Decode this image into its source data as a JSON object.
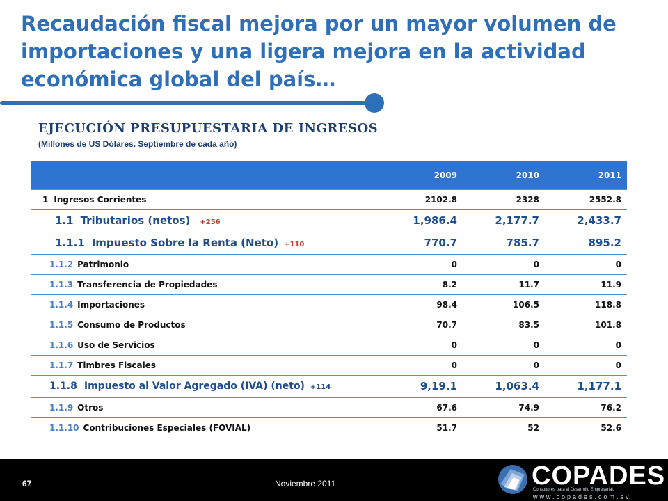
{
  "title": "Recaudación fiscal mejora por un mayor volumen de importaciones y una ligera mejora en la actividad económica global del país…",
  "subtitle": "EJECUCIÓN PRESUPUESTARIA DE INGRESOS",
  "note": "(Millones de US Dólares. Septiembre de cada año)",
  "table": {
    "headers": [
      "2009",
      "2010",
      "2011"
    ],
    "rows": [
      {
        "code": "1",
        "label": "Ingresos Corrientes",
        "delta": "",
        "values": [
          "2102.8",
          "2328",
          "2552.8"
        ]
      },
      {
        "code": "1.1",
        "label": "Tributarios (netos)",
        "delta": "+256",
        "values": [
          "1,986.4",
          "2,177.7",
          "2,433.7"
        ]
      },
      {
        "code": "1.1.1",
        "label": "Impuesto Sobre la Renta (Neto)",
        "delta": "+110",
        "values": [
          "770.7",
          "785.7",
          "895.2"
        ]
      },
      {
        "code": "1.1.2",
        "label": "Patrimonio",
        "delta": "",
        "values": [
          "0",
          "0",
          "0"
        ]
      },
      {
        "code": "1.1.3",
        "label": "Transferencia de Propiedades",
        "delta": "",
        "values": [
          "8.2",
          "11.7",
          "11.9"
        ]
      },
      {
        "code": "1.1.4",
        "label": "Importaciones",
        "delta": "",
        "values": [
          "98.4",
          "106.5",
          "118.8"
        ]
      },
      {
        "code": "1.1.5",
        "label": "Consumo de Productos",
        "delta": "",
        "values": [
          "70.7",
          "83.5",
          "101.8"
        ]
      },
      {
        "code": "1.1.6",
        "label": "Uso de Servicios",
        "delta": "",
        "values": [
          "0",
          "0",
          "0"
        ]
      },
      {
        "code": "1.1.7",
        "label": "Timbres Fiscales",
        "delta": "",
        "values": [
          "0",
          "0",
          "0"
        ]
      },
      {
        "code": "1.1.8",
        "label": "Impuesto al Valor Agregado (IVA) (neto)",
        "delta": "+114",
        "values": [
          "9,19.1",
          "1,063.4",
          "1,177.1"
        ]
      },
      {
        "code": "1.1.9",
        "label": "Otros",
        "delta": "",
        "values": [
          "67.6",
          "74.9",
          "76.2"
        ]
      },
      {
        "code": "1.1.10",
        "label": "Contribuciones Especiales (FOVIAL)",
        "delta": "",
        "values": [
          "51.7",
          "52",
          "52.6"
        ]
      }
    ]
  },
  "footer": {
    "page_number": "67",
    "date": "Noviembre 2011",
    "logo_text": "COPADES",
    "logo_tagline": "Consultores para el Desarrollo Empresarial.",
    "logo_url": "www.copades.com.sv"
  },
  "colors": {
    "accent": "#2f6fb7",
    "header_bg": "#2f74d0",
    "delta_red": "#c0392b"
  }
}
